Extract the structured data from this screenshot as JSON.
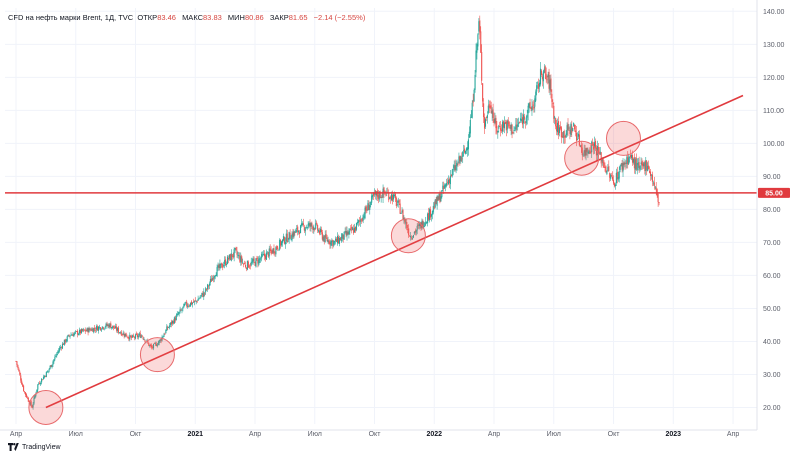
{
  "header": {
    "symbol": "CFD на нефть марки Brent, 1Д, TVC",
    "open_label": "ОТКР",
    "open_value": "83.46",
    "high_label": "МАКС",
    "high_value": "83.83",
    "low_label": "МИН",
    "low_value": "80.86",
    "close_label": "ЗАКР",
    "close_value": "81.65",
    "change": "−2.14 (−2.55%)"
  },
  "colors": {
    "up": "#26a69a",
    "down": "#ef5350",
    "trendline": "#e03a3e",
    "hline": "#e03a3e",
    "circle_fill": "rgba(239,83,80,0.22)",
    "circle_stroke": "#e86a6c"
  },
  "logo_text": "TradingView",
  "logo_icon": "tradingview-logo-icon",
  "chart_data": {
    "type": "candlestick",
    "title": "CFD на нефть марки Brent, 1Д, TVC",
    "y_ticks": [
      "20.00",
      "30.00",
      "40.00",
      "50.00",
      "60.00",
      "70.00",
      "80.00",
      "90.00",
      "100.00",
      "110.00",
      "120.00",
      "130.00",
      "140.00"
    ],
    "y_tick_values": [
      20,
      30,
      40,
      50,
      60,
      70,
      80,
      90,
      100,
      110,
      120,
      130,
      140
    ],
    "ylim": [
      15,
      141
    ],
    "x_range_months": [
      0,
      36.5
    ],
    "x_ticks": [
      {
        "label": "Апр",
        "m": 0,
        "bold": false
      },
      {
        "label": "Июл",
        "m": 3,
        "bold": false
      },
      {
        "label": "Окт",
        "m": 6,
        "bold": false
      },
      {
        "label": "2021",
        "m": 9,
        "bold": true
      },
      {
        "label": "Апр",
        "m": 12,
        "bold": false
      },
      {
        "label": "Июл",
        "m": 15,
        "bold": false
      },
      {
        "label": "Окт",
        "m": 18,
        "bold": false
      },
      {
        "label": "2022",
        "m": 21,
        "bold": true
      },
      {
        "label": "Апр",
        "m": 24,
        "bold": false
      },
      {
        "label": "Июл",
        "m": 27,
        "bold": false
      },
      {
        "label": "Окт",
        "m": 30,
        "bold": false
      },
      {
        "label": "2023",
        "m": 33,
        "bold": true
      },
      {
        "label": "Апр",
        "m": 36,
        "bold": false
      }
    ],
    "price_path": [
      [
        0,
        34
      ],
      [
        0.4,
        25
      ],
      [
        0.8,
        20
      ],
      [
        1.1,
        27
      ],
      [
        1.6,
        31
      ],
      [
        2.2,
        38
      ],
      [
        2.7,
        42
      ],
      [
        3.3,
        43
      ],
      [
        4,
        44
      ],
      [
        4.7,
        45
      ],
      [
        5.2,
        43
      ],
      [
        5.8,
        41
      ],
      [
        6.3,
        42
      ],
      [
        6.8,
        38
      ],
      [
        7.2,
        40
      ],
      [
        7.6,
        44
      ],
      [
        8,
        47
      ],
      [
        8.5,
        51
      ],
      [
        9,
        52
      ],
      [
        9.5,
        55
      ],
      [
        10,
        61
      ],
      [
        10.5,
        64
      ],
      [
        11,
        67
      ],
      [
        11.5,
        63
      ],
      [
        12,
        64
      ],
      [
        12.5,
        66
      ],
      [
        13,
        68
      ],
      [
        13.5,
        71
      ],
      [
        14,
        73
      ],
      [
        14.5,
        75
      ],
      [
        15,
        75
      ],
      [
        15.5,
        71
      ],
      [
        16,
        70
      ],
      [
        16.5,
        72
      ],
      [
        17,
        74
      ],
      [
        17.5,
        79
      ],
      [
        18,
        84
      ],
      [
        18.5,
        85
      ],
      [
        18.9,
        84
      ],
      [
        19.3,
        80
      ],
      [
        19.8,
        72
      ],
      [
        20.3,
        75
      ],
      [
        20.8,
        79
      ],
      [
        21.3,
        84
      ],
      [
        21.8,
        90
      ],
      [
        22.2,
        94
      ],
      [
        22.6,
        98
      ],
      [
        22.9,
        110
      ],
      [
        23.1,
        127
      ],
      [
        23.25,
        137
      ],
      [
        23.5,
        105
      ],
      [
        23.8,
        113
      ],
      [
        24.1,
        104
      ],
      [
        24.5,
        106
      ],
      [
        25,
        104
      ],
      [
        25.5,
        108
      ],
      [
        26,
        112
      ],
      [
        26.4,
        122
      ],
      [
        26.8,
        118
      ],
      [
        27.1,
        105
      ],
      [
        27.5,
        103
      ],
      [
        28,
        105
      ],
      [
        28.5,
        97
      ],
      [
        29,
        100
      ],
      [
        29.5,
        94
      ],
      [
        30,
        88
      ],
      [
        30.4,
        93
      ],
      [
        30.8,
        96
      ],
      [
        31.3,
        92
      ],
      [
        31.7,
        94
      ],
      [
        32,
        88
      ],
      [
        32.3,
        81.65
      ]
    ],
    "trendline": {
      "from": [
        1.5,
        20
      ],
      "to": [
        36.5,
        114.5
      ]
    },
    "horizontal_line": {
      "value": 85,
      "label": "85.00"
    },
    "highlight_circles": [
      {
        "m": 1.5,
        "price": 20
      },
      {
        "m": 7.1,
        "price": 36
      },
      {
        "m": 19.7,
        "price": 72
      },
      {
        "m": 28.4,
        "price": 95.5
      },
      {
        "m": 30.5,
        "price": 101.5
      }
    ]
  }
}
